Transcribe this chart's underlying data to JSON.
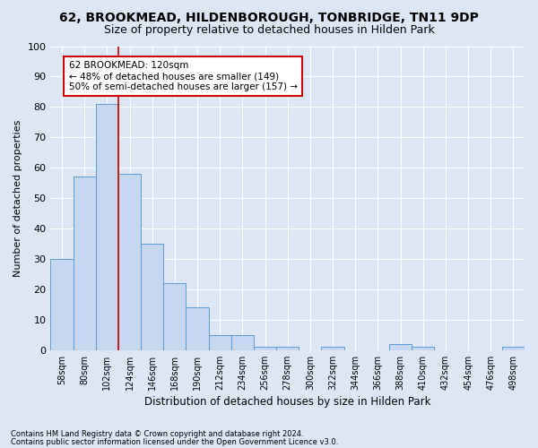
{
  "title": "62, BROOKMEAD, HILDENBOROUGH, TONBRIDGE, TN11 9DP",
  "subtitle": "Size of property relative to detached houses in Hilden Park",
  "xlabel": "Distribution of detached houses by size in Hilden Park",
  "ylabel": "Number of detached properties",
  "footnote1": "Contains HM Land Registry data © Crown copyright and database right 2024.",
  "footnote2": "Contains public sector information licensed under the Open Government Licence v3.0.",
  "annotation_title": "62 BROOKMEAD: 120sqm",
  "annotation_line1": "← 48% of detached houses are smaller (149)",
  "annotation_line2": "50% of semi-detached houses are larger (157) →",
  "bar_values": [
    30,
    57,
    81,
    58,
    35,
    22,
    14,
    5,
    5,
    1,
    1,
    0,
    1,
    0,
    0,
    2,
    1,
    0,
    0,
    0,
    1
  ],
  "categories": [
    "58sqm",
    "80sqm",
    "102sqm",
    "124sqm",
    "146sqm",
    "168sqm",
    "190sqm",
    "212sqm",
    "234sqm",
    "256sqm",
    "278sqm",
    "300sqm",
    "322sqm",
    "344sqm",
    "366sqm",
    "388sqm",
    "410sqm",
    "432sqm",
    "454sqm",
    "476sqm",
    "498sqm"
  ],
  "bar_color": "#c5d8ef",
  "bar_edge_color": "#5b9bd5",
  "red_line_x": 2.5,
  "ylim": [
    0,
    100
  ],
  "yticks": [
    0,
    10,
    20,
    30,
    40,
    50,
    60,
    70,
    80,
    90,
    100
  ],
  "background_color": "#dce6f5",
  "plot_bg_color": "#dce6f5",
  "grid_color": "#ffffff",
  "title_fontsize": 10,
  "subtitle_fontsize": 9,
  "annotation_box_color": "#ffffff",
  "annotation_box_edge": "#cc0000"
}
